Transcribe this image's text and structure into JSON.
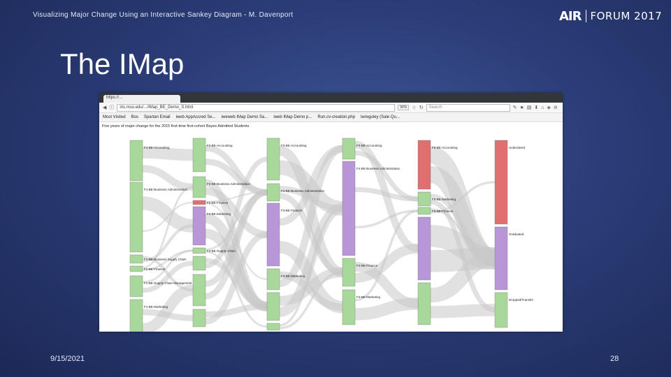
{
  "header": "Visualizing Major Change Using an Interactive Sankey Diagram - M. Davenport",
  "logo": {
    "left": "AIR",
    "right": "FORUM 2017"
  },
  "title": "The IMap",
  "footer": {
    "date": "9/15/2021",
    "page": "28"
  },
  "browser": {
    "tab_label": "https://...",
    "url": "iris.msu.edu/.../IMap_BE_Demo_S.html",
    "zoom": "90%",
    "search_placeholder": "Search",
    "bookmarks": [
      "Most Visited",
      "Bos",
      "Spartan Email",
      "iweb AppAccred Se...",
      "iweweb IMap Demo Sa...",
      "iweb IMap Demo p...",
      "Run.cv-creation.php",
      "iwreguley (Sale Qu..."
    ]
  },
  "caption": "Five years of major change for the 2015 first-time first-cohort Bayes Admitted Students",
  "colors": {
    "green": "#a8d99a",
    "purple": "#b996d8",
    "red": "#e07070",
    "flow": "#c8c8c8"
  },
  "sankey_labels": {
    "c0": [
      "F1-BE-Accounting",
      "F1-BE-Business Administration",
      "F1-BE-Business Supply Chain",
      "F1-BE-Finance",
      "F1-BE-Supply Chain Management",
      "F1-BE-Marketing"
    ],
    "c1": [
      "F2-BE-Accounting",
      "F2-BE-Business Administration",
      "F2-BE-Finance",
      "F2-BE-Marketing",
      "F2-BE-Supply Chain"
    ],
    "c2": [
      "F3-BE-Accounting",
      "F3-BE-Business Administration",
      "F3-BE-Finance",
      "F3-BE-Marketing"
    ],
    "c3": [
      "F4-BE-Accounting",
      "F4-BE-Business Administration",
      "F4-BE-Finance",
      "F4-BE-Marketing"
    ],
    "c4": [
      "F5-BE-Accounting",
      "F5-BE-Marketing",
      "F5-BE-Finance"
    ],
    "c5": [
      "Undeclared",
      "Graduated",
      "Dropped/Transfer"
    ]
  }
}
